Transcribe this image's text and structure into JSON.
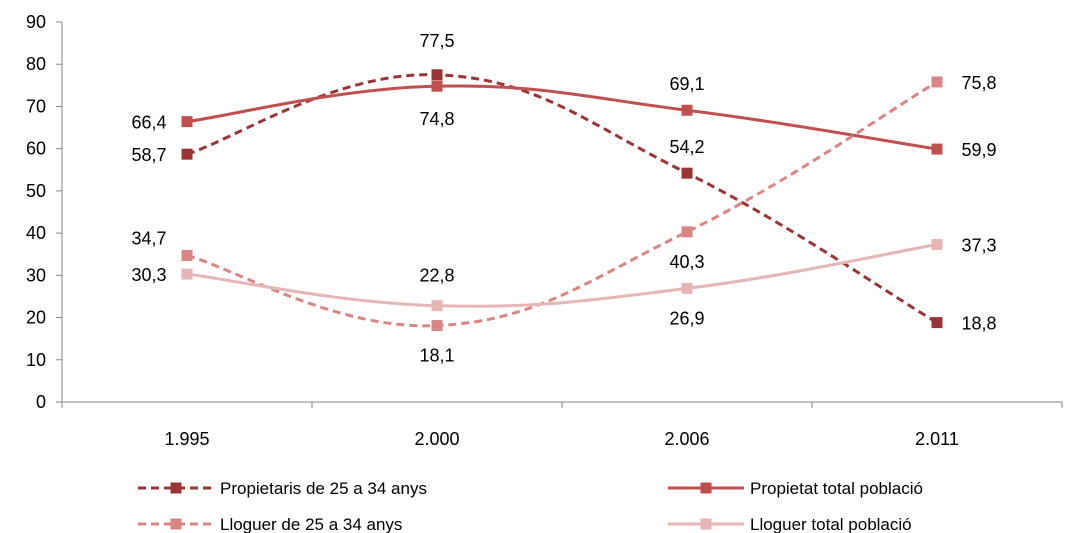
{
  "chart_data": {
    "type": "line",
    "categories": [
      "1.995",
      "2.000",
      "2.006",
      "2.011"
    ],
    "ylim": [
      0,
      90
    ],
    "yticks": [
      "0",
      "10",
      "20",
      "30",
      "40",
      "50",
      "60",
      "70",
      "80",
      "90"
    ],
    "grid": false,
    "legend_position": "bottom",
    "series": [
      {
        "name": "Propietaris de 25 a 34 anys",
        "values": [
          58.7,
          77.5,
          54.2,
          18.8
        ],
        "labels": [
          "58,7",
          "77,5",
          "54,2",
          "18,8"
        ],
        "color": "#9b3535",
        "dashed": true
      },
      {
        "name": "Propietat total població",
        "values": [
          66.4,
          74.8,
          69.1,
          59.9
        ],
        "labels": [
          "66,4",
          "74,8",
          "69,1",
          "59,9"
        ],
        "color": "#c0504d",
        "dashed": false
      },
      {
        "name": "Lloguer de 25 a 34 anys",
        "values": [
          34.7,
          18.1,
          40.3,
          75.8
        ],
        "labels": [
          "34,7",
          "18,1",
          "40,3",
          "75,8"
        ],
        "color": "#d98583",
        "dashed": true
      },
      {
        "name": "Lloguer total població",
        "values": [
          30.3,
          22.8,
          26.9,
          37.3
        ],
        "labels": [
          "30,3",
          "22,8",
          "26,9",
          "37,3"
        ],
        "color": "#e6b6b5",
        "dashed": false
      }
    ]
  }
}
